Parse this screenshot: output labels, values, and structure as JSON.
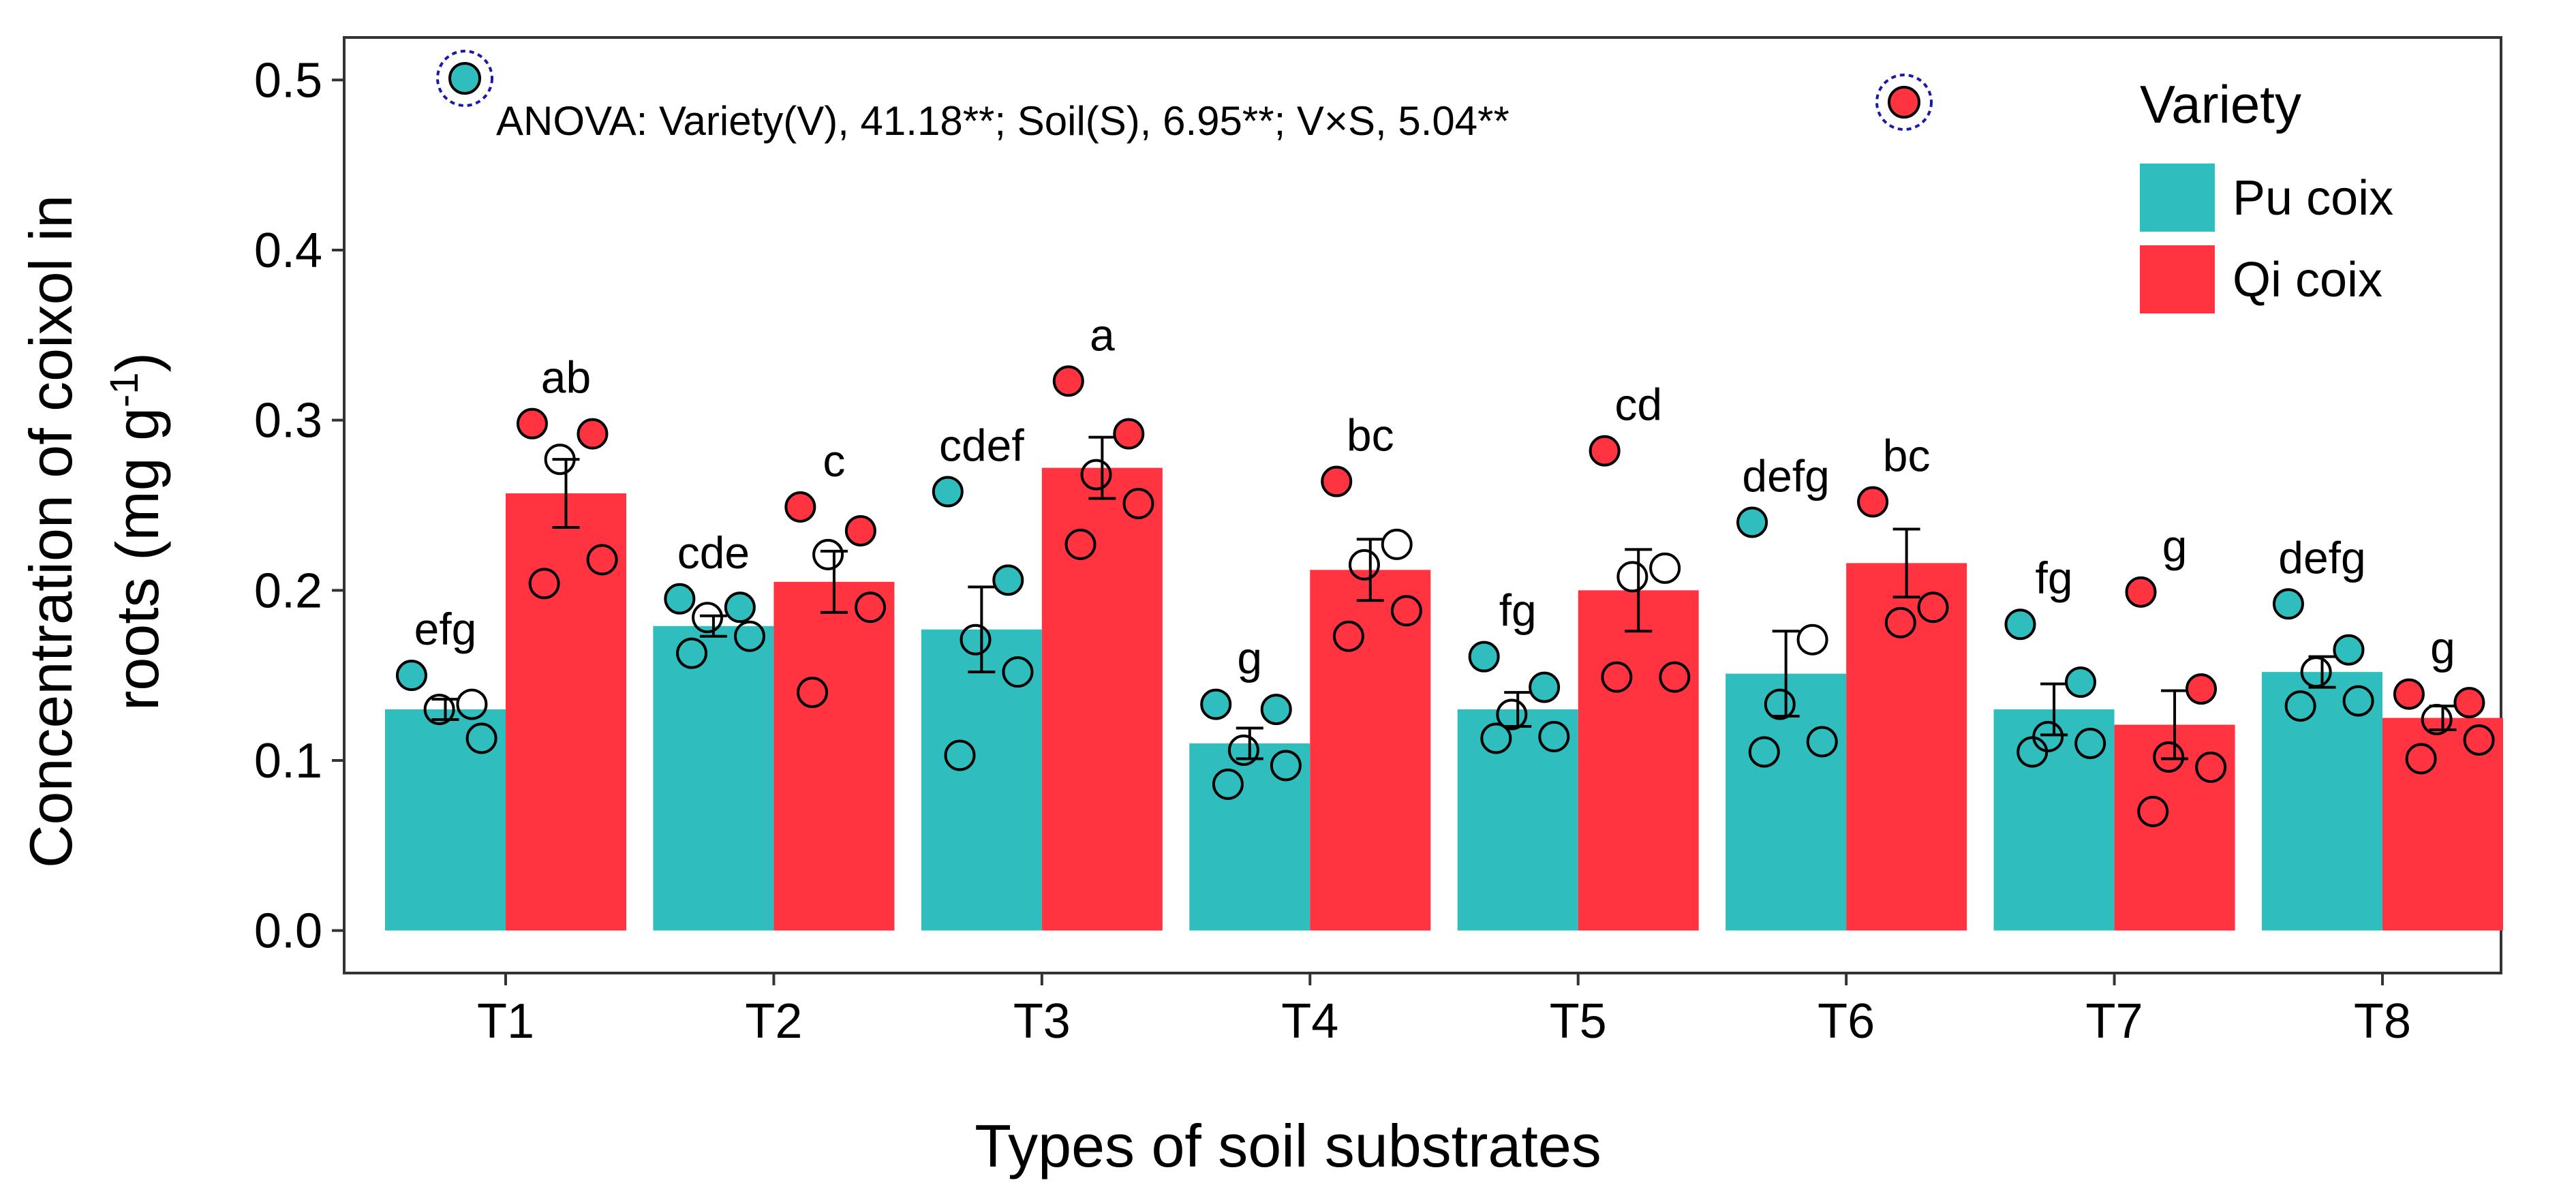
{
  "chart_data": {
    "type": "bar",
    "title": "",
    "xlabel": "Types of soil substrates",
    "ylabel_line1": "Concentration of coixol in",
    "ylabel_line2_prefix": "roots (mg g",
    "ylabel_line2_sup": "-1",
    "ylabel_line2_suffix": ")",
    "ylim": [
      -0.025,
      0.525
    ],
    "yticks": [
      "0.0",
      "0.1",
      "0.2",
      "0.3",
      "0.4",
      "0.5"
    ],
    "categories": [
      "T1",
      "T2",
      "T3",
      "T4",
      "T5",
      "T6",
      "T7",
      "T8"
    ],
    "series": [
      {
        "name": "Pu coix",
        "color": "#2FBDBD",
        "values": [
          0.13,
          0.179,
          0.177,
          0.11,
          0.13,
          0.151,
          0.13,
          0.152
        ],
        "errors": [
          0.006,
          0.006,
          0.025,
          0.009,
          0.01,
          0.025,
          0.015,
          0.009
        ],
        "letters": [
          "efg",
          "cde",
          "cdef",
          "g",
          "fg",
          "defg",
          "fg",
          "defg"
        ],
        "points": [
          [
            0.15,
            0.133,
            0.13,
            0.113
          ],
          [
            0.195,
            0.19,
            0.184,
            0.173,
            0.163
          ],
          [
            0.258,
            0.206,
            0.171,
            0.152,
            0.103
          ],
          [
            0.133,
            0.13,
            0.106,
            0.097,
            0.086
          ],
          [
            0.161,
            0.143,
            0.127,
            0.114,
            0.113
          ],
          [
            0.24,
            0.171,
            0.133,
            0.111,
            0.105
          ],
          [
            0.18,
            0.146,
            0.114,
            0.11,
            0.105
          ],
          [
            0.192,
            0.165,
            0.152,
            0.135,
            0.132
          ]
        ]
      },
      {
        "name": "Qi coix",
        "color": "#FF3440",
        "values": [
          0.257,
          0.205,
          0.272,
          0.212,
          0.2,
          0.216,
          0.121,
          0.125
        ],
        "errors": [
          0.02,
          0.018,
          0.018,
          0.018,
          0.024,
          0.02,
          0.02,
          0.007
        ],
        "letters": [
          "ab",
          "c",
          "a",
          "bc",
          "cd",
          "bc",
          "g",
          "g"
        ],
        "points": [
          [
            0.298,
            0.292,
            0.277,
            0.218,
            0.204
          ],
          [
            0.249,
            0.235,
            0.221,
            0.19,
            0.14
          ],
          [
            0.323,
            0.292,
            0.268,
            0.251,
            0.227
          ],
          [
            0.264,
            0.227,
            0.215,
            0.188,
            0.173
          ],
          [
            0.282,
            0.213,
            0.208,
            0.149,
            0.149
          ],
          [
            0.252,
            0.19,
            0.181
          ],
          [
            0.199,
            0.142,
            0.102,
            0.096,
            0.07
          ],
          [
            0.139,
            0.134,
            0.124,
            0.112,
            0.101
          ]
        ]
      }
    ],
    "annotation": "ANOVA: Variety(V), 41.18**; Soil(S), 6.95**; V×S, 5.04**",
    "legend": {
      "title": "Variety",
      "position": "top-right"
    },
    "grid": false
  }
}
